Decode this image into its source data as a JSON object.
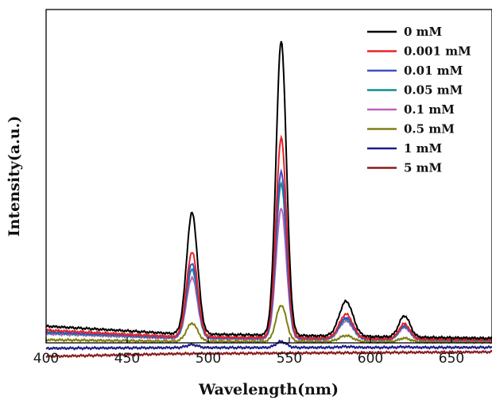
{
  "chart_data": {
    "type": "line",
    "xlabel": "Wavelength(nm)",
    "ylabel": "Intensity(a.u.)",
    "xlim": [
      400,
      675
    ],
    "ylim": [
      0,
      110
    ],
    "x_ticks": [
      400,
      450,
      500,
      550,
      600,
      650
    ],
    "y_ticks_shown": false,
    "grid": false,
    "legend_position": "top-right",
    "series": [
      {
        "name": "0 mM",
        "color": "#000000",
        "baseline": [
          5.5,
          3.0,
          1.5
        ],
        "peaks": [
          40.0,
          97.0,
          11.5,
          7.0
        ]
      },
      {
        "name": "0.001 mM",
        "color": "#e8232a",
        "baseline": [
          4.2,
          2.0,
          1.0
        ],
        "peaks": [
          28.0,
          66.0,
          8.0,
          5.0
        ]
      },
      {
        "name": "0.01 mM",
        "color": "#3e4fc6",
        "baseline": [
          3.6,
          1.8,
          1.0
        ],
        "peaks": [
          24.5,
          55.0,
          7.0,
          4.5
        ]
      },
      {
        "name": "0.05 mM",
        "color": "#0f8f8f",
        "baseline": [
          3.3,
          1.7,
          0.9
        ],
        "peaks": [
          22.5,
          51.0,
          6.5,
          4.2
        ]
      },
      {
        "name": "0.1 mM",
        "color": "#c260c0",
        "baseline": [
          3.0,
          1.5,
          0.9
        ],
        "peaks": [
          20.0,
          43.0,
          6.0,
          4.0
        ]
      },
      {
        "name": "0.5 mM",
        "color": "#7f7f10",
        "baseline": [
          1.0,
          0.5,
          0.3
        ],
        "peaks": [
          6.0,
          12.0,
          2.0,
          1.2
        ]
      },
      {
        "name": "1 mM",
        "color": "#1c1c8a",
        "baseline": [
          -1.8,
          -1.6,
          -1.5
        ],
        "peaks": [
          1.0,
          2.0,
          0.3,
          0.2
        ]
      },
      {
        "name": "5 mM",
        "color": "#8a1b1b",
        "baseline": [
          -4.5,
          -3.6,
          -3.0
        ],
        "peaks": [
          0.0,
          0.0,
          0.0,
          0.0
        ]
      }
    ]
  }
}
